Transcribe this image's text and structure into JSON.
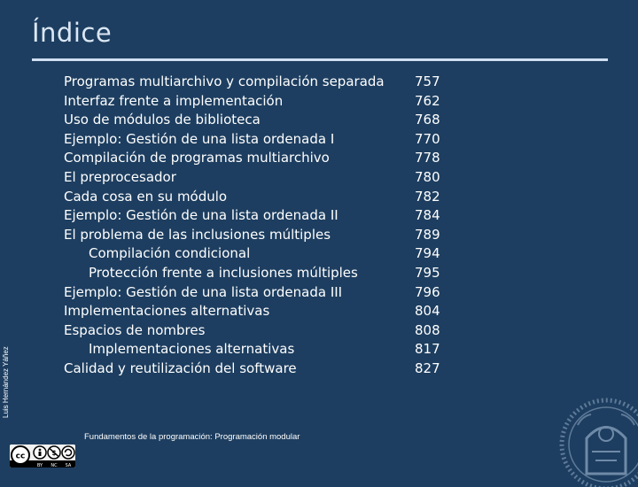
{
  "slide": {
    "title": "Índice",
    "author": "Luis Hernández Yáñez",
    "footer": "Fundamentos de la programación: Programación modular"
  },
  "toc": [
    {
      "label": "Programas multiarchivo y compilación separada",
      "page": "757",
      "level": 0
    },
    {
      "label": "Interfaz frente a implementación",
      "page": "762",
      "level": 0
    },
    {
      "label": "Uso de módulos de biblioteca",
      "page": "768",
      "level": 0
    },
    {
      "label": "Ejemplo: Gestión de una lista ordenada I",
      "page": "770",
      "level": 0
    },
    {
      "label": "Compilación de programas multiarchivo",
      "page": "778",
      "level": 0
    },
    {
      "label": "El preprocesador",
      "page": "780",
      "level": 0
    },
    {
      "label": "Cada cosa en su módulo",
      "page": "782",
      "level": 0
    },
    {
      "label": "Ejemplo: Gestión de una lista ordenada II",
      "page": "784",
      "level": 0
    },
    {
      "label": "El problema de las inclusiones múltiples",
      "page": "789",
      "level": 0
    },
    {
      "label": "Compilación condicional",
      "page": "794",
      "level": 1
    },
    {
      "label": "Protección frente a inclusiones múltiples",
      "page": "795",
      "level": 1
    },
    {
      "label": "Ejemplo: Gestión de una lista ordenada III",
      "page": "796",
      "level": 0
    },
    {
      "label": "Implementaciones alternativas",
      "page": "804",
      "level": 0
    },
    {
      "label": "Espacios de nombres",
      "page": "808",
      "level": 0
    },
    {
      "label": "Implementaciones alternativas",
      "page": "817",
      "level": 1
    },
    {
      "label": "Calidad y reutilización del software",
      "page": "827",
      "level": 0
    }
  ],
  "license_badge": {
    "labels": [
      "BY",
      "NC",
      "SA"
    ],
    "icon": "creative-commons-icon"
  },
  "seal_icon": "university-seal-icon",
  "colors": {
    "background": "#1d3e60",
    "title": "#dbe7f5",
    "rule": "#cfdef1",
    "text": "#ffffff"
  }
}
